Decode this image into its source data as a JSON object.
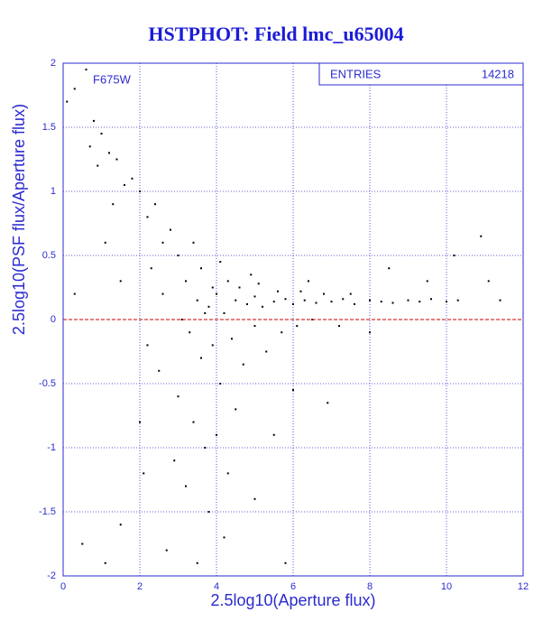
{
  "chart_data": {
    "type": "scatter",
    "title": "HSTPHOT: Field lmc_u65004",
    "x_label": "2.5log10(Aperture flux)",
    "y_label": "2.5log10(PSF flux/Aperture flux)",
    "annotation": "F675W",
    "stats": {
      "label": "ENTRIES",
      "value": 14218
    },
    "xlim": [
      0,
      12
    ],
    "xticks": [
      0,
      2,
      4,
      6,
      8,
      10,
      12
    ],
    "ylim": [
      -2,
      2
    ],
    "yticks": [
      -2,
      -1.5,
      -1,
      -0.5,
      0,
      0.5,
      1,
      1.5,
      2
    ],
    "grid": true,
    "color": "#000000",
    "reference_line": {
      "value": 0,
      "color": "#cc0000"
    },
    "x": [
      3.5,
      3.8,
      4.0,
      4.2,
      4.5,
      4.8,
      5.0,
      5.2,
      5.5,
      5.8,
      6.0,
      6.3,
      6.6,
      7.0,
      7.3,
      7.6,
      8.0,
      8.3,
      8.6,
      9.0,
      9.3,
      9.6,
      10.0,
      10.3,
      3.2,
      3.6,
      3.9,
      4.3,
      4.6,
      5.1,
      5.6,
      6.2,
      6.8,
      7.5,
      3.0,
      2.8,
      2.6,
      2.4,
      2.2,
      2.0,
      1.8,
      3.3,
      3.6,
      3.9,
      4.1,
      4.4,
      4.7,
      5.0,
      5.3,
      5.7,
      6.1,
      6.5,
      3.0,
      3.4,
      3.7,
      4.0,
      4.3,
      3.2,
      3.8,
      4.5,
      5.0,
      5.5,
      2.5,
      2.2,
      2.9,
      2.7,
      3.5,
      4.2,
      2.0,
      1.5,
      0.5,
      1.1,
      0.3,
      0.1,
      0.6,
      0.8,
      1.0,
      0.7,
      1.2,
      0.9,
      1.4,
      1.6,
      1.3,
      1.1,
      1.5,
      0.3,
      8.5,
      10.2,
      10.9,
      11.4,
      11.1,
      9.5,
      8.0,
      7.2,
      6.0,
      6.9,
      5.8,
      3.1,
      2.6,
      2.3,
      3.4,
      3.7,
      4.9,
      4.1,
      2.1,
      6.4
    ],
    "values": [
      0.15,
      0.1,
      0.2,
      0.05,
      0.15,
      0.12,
      0.18,
      0.1,
      0.14,
      0.16,
      0.12,
      0.15,
      0.13,
      0.14,
      0.16,
      0.12,
      0.15,
      0.14,
      0.13,
      0.15,
      0.14,
      0.16,
      0.14,
      0.15,
      0.3,
      0.4,
      0.25,
      0.3,
      0.25,
      0.28,
      0.22,
      0.22,
      0.2,
      0.2,
      0.5,
      0.7,
      0.6,
      0.9,
      0.8,
      1.0,
      1.1,
      -0.1,
      -0.3,
      -0.2,
      -0.5,
      -0.15,
      -0.35,
      -0.05,
      -0.25,
      -0.1,
      -0.05,
      0.0,
      -0.6,
      -0.8,
      -1.0,
      -0.9,
      -1.2,
      -1.3,
      -1.5,
      -0.7,
      -1.4,
      -0.9,
      -0.4,
      -0.2,
      -1.1,
      -1.8,
      -1.9,
      -1.7,
      -0.8,
      -1.6,
      -1.75,
      -1.9,
      1.8,
      1.7,
      1.95,
      1.55,
      1.45,
      1.35,
      1.3,
      1.2,
      1.25,
      1.05,
      0.9,
      0.6,
      0.3,
      0.2,
      0.4,
      0.5,
      0.65,
      0.15,
      0.3,
      0.3,
      -0.1,
      -0.05,
      -0.55,
      -0.65,
      -1.9,
      0.0,
      0.2,
      0.4,
      0.6,
      0.05,
      0.35,
      0.45,
      -1.2,
      0.3
    ]
  }
}
